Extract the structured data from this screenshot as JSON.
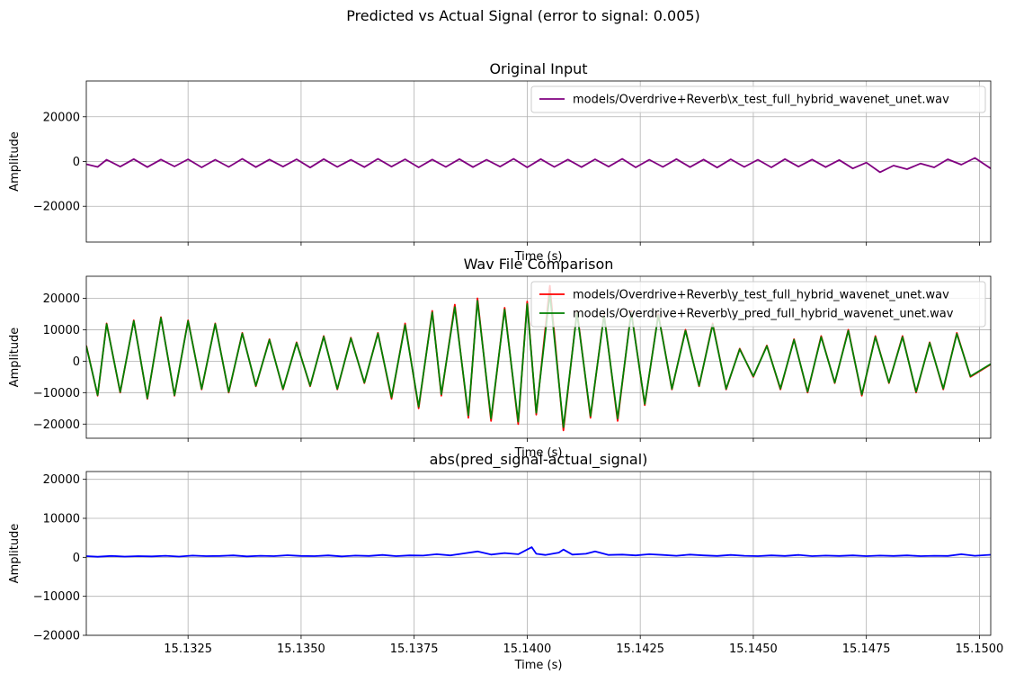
{
  "figure": {
    "suptitle": "Predicted vs Actual Signal (error to signal: 0.005)"
  },
  "chart_data": [
    {
      "type": "line",
      "title": "Original Input",
      "xlabel": "Time (s)",
      "ylabel": "Amplitude",
      "xlim": [
        15.13025,
        15.15025
      ],
      "ylim": [
        -36000,
        36000
      ],
      "yticks": [
        -20000,
        0,
        20000
      ],
      "ytick_labels": [
        "−20000",
        "0",
        "20000"
      ],
      "xticks": [
        15.1325,
        15.135,
        15.1375,
        15.14,
        15.1425,
        15.145,
        15.1475,
        15.15
      ],
      "xtick_labels": [],
      "grid": true,
      "legend_position": "upper right",
      "series": [
        {
          "name": "models/Overdrive+Reverb\\x_test_full_hybrid_wavenet_unet.wav",
          "color": "#800080",
          "x": [
            15.13025,
            15.1305,
            15.1307,
            15.131,
            15.1313,
            15.1316,
            15.1319,
            15.1322,
            15.1325,
            15.1328,
            15.1331,
            15.1334,
            15.1337,
            15.134,
            15.1343,
            15.1346,
            15.1349,
            15.1352,
            15.1355,
            15.1358,
            15.1361,
            15.1364,
            15.1367,
            15.137,
            15.1373,
            15.1376,
            15.1379,
            15.1382,
            15.1385,
            15.1388,
            15.1391,
            15.1394,
            15.1397,
            15.14,
            15.1403,
            15.1406,
            15.1409,
            15.1412,
            15.1415,
            15.1418,
            15.1421,
            15.1424,
            15.1427,
            15.143,
            15.1433,
            15.1436,
            15.1439,
            15.1442,
            15.1445,
            15.1448,
            15.1451,
            15.1454,
            15.1457,
            15.146,
            15.1463,
            15.1466,
            15.1469,
            15.1472,
            15.1475,
            15.1478,
            15.1481,
            15.1484,
            15.1487,
            15.149,
            15.1493,
            15.1496,
            15.1499,
            15.15025
          ],
          "y": [
            -1200,
            -2400,
            800,
            -2300,
            1100,
            -2500,
            900,
            -2200,
            1000,
            -2600,
            800,
            -2400,
            1200,
            -2500,
            900,
            -2300,
            1000,
            -2700,
            1100,
            -2400,
            800,
            -2500,
            1200,
            -2300,
            1000,
            -2600,
            900,
            -2400,
            1100,
            -2500,
            800,
            -2300,
            1200,
            -2600,
            1100,
            -2400,
            900,
            -2500,
            1000,
            -2300,
            1200,
            -2600,
            800,
            -2400,
            1100,
            -2500,
            900,
            -2700,
            1000,
            -2400,
            800,
            -2600,
            1100,
            -2300,
            900,
            -2500,
            700,
            -3100,
            -500,
            -4800,
            -1800,
            -3400,
            -900,
            -2600,
            1000,
            -1400,
            1600,
            -3100
          ]
        }
      ]
    },
    {
      "type": "line",
      "title": "Wav File Comparison",
      "xlabel": "Time (s)",
      "ylabel": "Amplitude",
      "xlim": [
        15.13025,
        15.15025
      ],
      "ylim": [
        -24500,
        27000
      ],
      "yticks": [
        -20000,
        -10000,
        0,
        10000,
        20000
      ],
      "ytick_labels": [
        "−20000",
        "−10000",
        "0",
        "10000",
        "20000"
      ],
      "xticks": [
        15.1325,
        15.135,
        15.1375,
        15.14,
        15.1425,
        15.145,
        15.1475,
        15.15
      ],
      "xtick_labels": [],
      "grid": true,
      "legend_position": "upper right",
      "series": [
        {
          "name": "models/Overdrive+Reverb\\y_test_full_hybrid_wavenet_unet.wav",
          "color": "#ff0000",
          "x": [
            15.13025,
            15.1305,
            15.1307,
            15.131,
            15.1313,
            15.1316,
            15.1319,
            15.1322,
            15.1325,
            15.1328,
            15.1331,
            15.1334,
            15.1337,
            15.134,
            15.1343,
            15.1346,
            15.1349,
            15.1352,
            15.1355,
            15.1358,
            15.1361,
            15.1364,
            15.1367,
            15.137,
            15.1373,
            15.1376,
            15.1379,
            15.1381,
            15.1384,
            15.1387,
            15.1389,
            15.1392,
            15.1395,
            15.1398,
            15.14,
            15.1402,
            15.1405,
            15.1408,
            15.1411,
            15.1414,
            15.1417,
            15.142,
            15.1423,
            15.1426,
            15.1429,
            15.1432,
            15.1435,
            15.1438,
            15.1441,
            15.1444,
            15.1447,
            15.145,
            15.1453,
            15.1456,
            15.1459,
            15.1462,
            15.1465,
            15.1468,
            15.1471,
            15.1474,
            15.1477,
            15.148,
            15.1483,
            15.1486,
            15.1489,
            15.1492,
            15.1495,
            15.1498,
            15.15025
          ],
          "y": [
            5000,
            -11000,
            12000,
            -10000,
            13000,
            -12000,
            14000,
            -11000,
            13000,
            -9000,
            12000,
            -10000,
            9000,
            -8000,
            7000,
            -9000,
            6000,
            -8000,
            8000,
            -9000,
            7500,
            -7000,
            9000,
            -12000,
            12000,
            -15000,
            16000,
            -11000,
            18000,
            -18000,
            20000,
            -19000,
            17000,
            -20000,
            19000,
            -17000,
            24000,
            -22000,
            16000,
            -18000,
            15000,
            -19000,
            16000,
            -14000,
            15000,
            -9000,
            10000,
            -8000,
            12000,
            -9000,
            4000,
            -5000,
            5000,
            -9000,
            7000,
            -10000,
            8000,
            -7000,
            10000,
            -11000,
            8000,
            -7000,
            8000,
            -10000,
            6000,
            -9000,
            9000,
            -5000,
            -1000
          ]
        },
        {
          "name": "models/Overdrive+Reverb\\y_pred_full_hybrid_wavenet_unet.wav",
          "color": "#008000",
          "x": [
            15.13025,
            15.1305,
            15.1307,
            15.131,
            15.1313,
            15.1316,
            15.1319,
            15.1322,
            15.1325,
            15.1328,
            15.1331,
            15.1334,
            15.1337,
            15.134,
            15.1343,
            15.1346,
            15.1349,
            15.1352,
            15.1355,
            15.1358,
            15.1361,
            15.1364,
            15.1367,
            15.137,
            15.1373,
            15.1376,
            15.1379,
            15.1381,
            15.1384,
            15.1387,
            15.1389,
            15.1392,
            15.1395,
            15.1398,
            15.14,
            15.1402,
            15.1405,
            15.1408,
            15.1411,
            15.1414,
            15.1417,
            15.142,
            15.1423,
            15.1426,
            15.1429,
            15.1432,
            15.1435,
            15.1438,
            15.1441,
            15.1444,
            15.1447,
            15.145,
            15.1453,
            15.1456,
            15.1459,
            15.1462,
            15.1465,
            15.1468,
            15.1471,
            15.1474,
            15.1477,
            15.148,
            15.1483,
            15.1486,
            15.1489,
            15.1492,
            15.1495,
            15.1498,
            15.15025
          ],
          "y": [
            4800,
            -10800,
            11800,
            -9800,
            12800,
            -11800,
            13800,
            -10800,
            12800,
            -8800,
            11800,
            -9800,
            8800,
            -7800,
            6800,
            -8800,
            5800,
            -7800,
            7800,
            -8800,
            7300,
            -6800,
            8800,
            -11500,
            11500,
            -14500,
            15500,
            -10500,
            17200,
            -17200,
            19200,
            -18200,
            16400,
            -19200,
            18200,
            -16400,
            21500,
            -21000,
            15400,
            -17400,
            14500,
            -18200,
            15500,
            -13600,
            14600,
            -8800,
            9700,
            -7800,
            11600,
            -8800,
            3800,
            -4800,
            4800,
            -8700,
            6800,
            -9700,
            7700,
            -6800,
            9700,
            -10600,
            7700,
            -6800,
            7700,
            -9700,
            5800,
            -8700,
            8700,
            -4800,
            -900
          ]
        }
      ]
    },
    {
      "type": "line",
      "title": "abs(pred_signal-actual_signal)",
      "xlabel": "Time (s)",
      "ylabel": "Amplitude",
      "xlim": [
        15.13025,
        15.15025
      ],
      "ylim": [
        -20000,
        22000
      ],
      "yticks": [
        -20000,
        -10000,
        0,
        10000,
        20000
      ],
      "ytick_labels": [
        "−20000",
        "−10000",
        "0",
        "10000",
        "20000"
      ],
      "xticks": [
        15.1325,
        15.135,
        15.1375,
        15.14,
        15.1425,
        15.145,
        15.1475,
        15.15
      ],
      "xtick_labels": [
        "15.1325",
        "15.1350",
        "15.1375",
        "15.1400",
        "15.1425",
        "15.1450",
        "15.1475",
        "15.1500"
      ],
      "grid": true,
      "legend_position": "none",
      "series": [
        {
          "name": "",
          "color": "#0000ff",
          "x": [
            15.13025,
            15.1305,
            15.1308,
            15.1311,
            15.1314,
            15.1317,
            15.132,
            15.1323,
            15.1326,
            15.1329,
            15.1332,
            15.1335,
            15.1338,
            15.1341,
            15.1344,
            15.1347,
            15.135,
            15.1353,
            15.1356,
            15.1359,
            15.1362,
            15.1365,
            15.1368,
            15.1371,
            15.1374,
            15.1377,
            15.138,
            15.1383,
            15.1386,
            15.1389,
            15.1392,
            15.1395,
            15.1398,
            15.1401,
            15.1402,
            15.1404,
            15.1407,
            15.1408,
            15.141,
            15.1413,
            15.1415,
            15.1418,
            15.1421,
            15.1424,
            15.1427,
            15.143,
            15.1433,
            15.1436,
            15.1439,
            15.1442,
            15.1445,
            15.1448,
            15.1451,
            15.1454,
            15.1457,
            15.146,
            15.1463,
            15.1466,
            15.1469,
            15.1472,
            15.1475,
            15.1478,
            15.1481,
            15.1484,
            15.1487,
            15.149,
            15.1493,
            15.1496,
            15.1499,
            15.15025
          ],
          "y": [
            300,
            150,
            350,
            200,
            300,
            250,
            400,
            200,
            450,
            300,
            350,
            500,
            250,
            400,
            300,
            550,
            350,
            300,
            500,
            250,
            450,
            350,
            600,
            300,
            500,
            450,
            800,
            500,
            1000,
            1500,
            700,
            1100,
            800,
            2600,
            900,
            600,
            1200,
            2000,
            700,
            900,
            1500,
            600,
            700,
            500,
            800,
            600,
            400,
            700,
            500,
            350,
            600,
            400,
            300,
            500,
            350,
            600,
            300,
            450,
            350,
            500,
            300,
            450,
            350,
            500,
            300,
            400,
            350,
            800,
            400,
            650
          ]
        }
      ]
    }
  ]
}
